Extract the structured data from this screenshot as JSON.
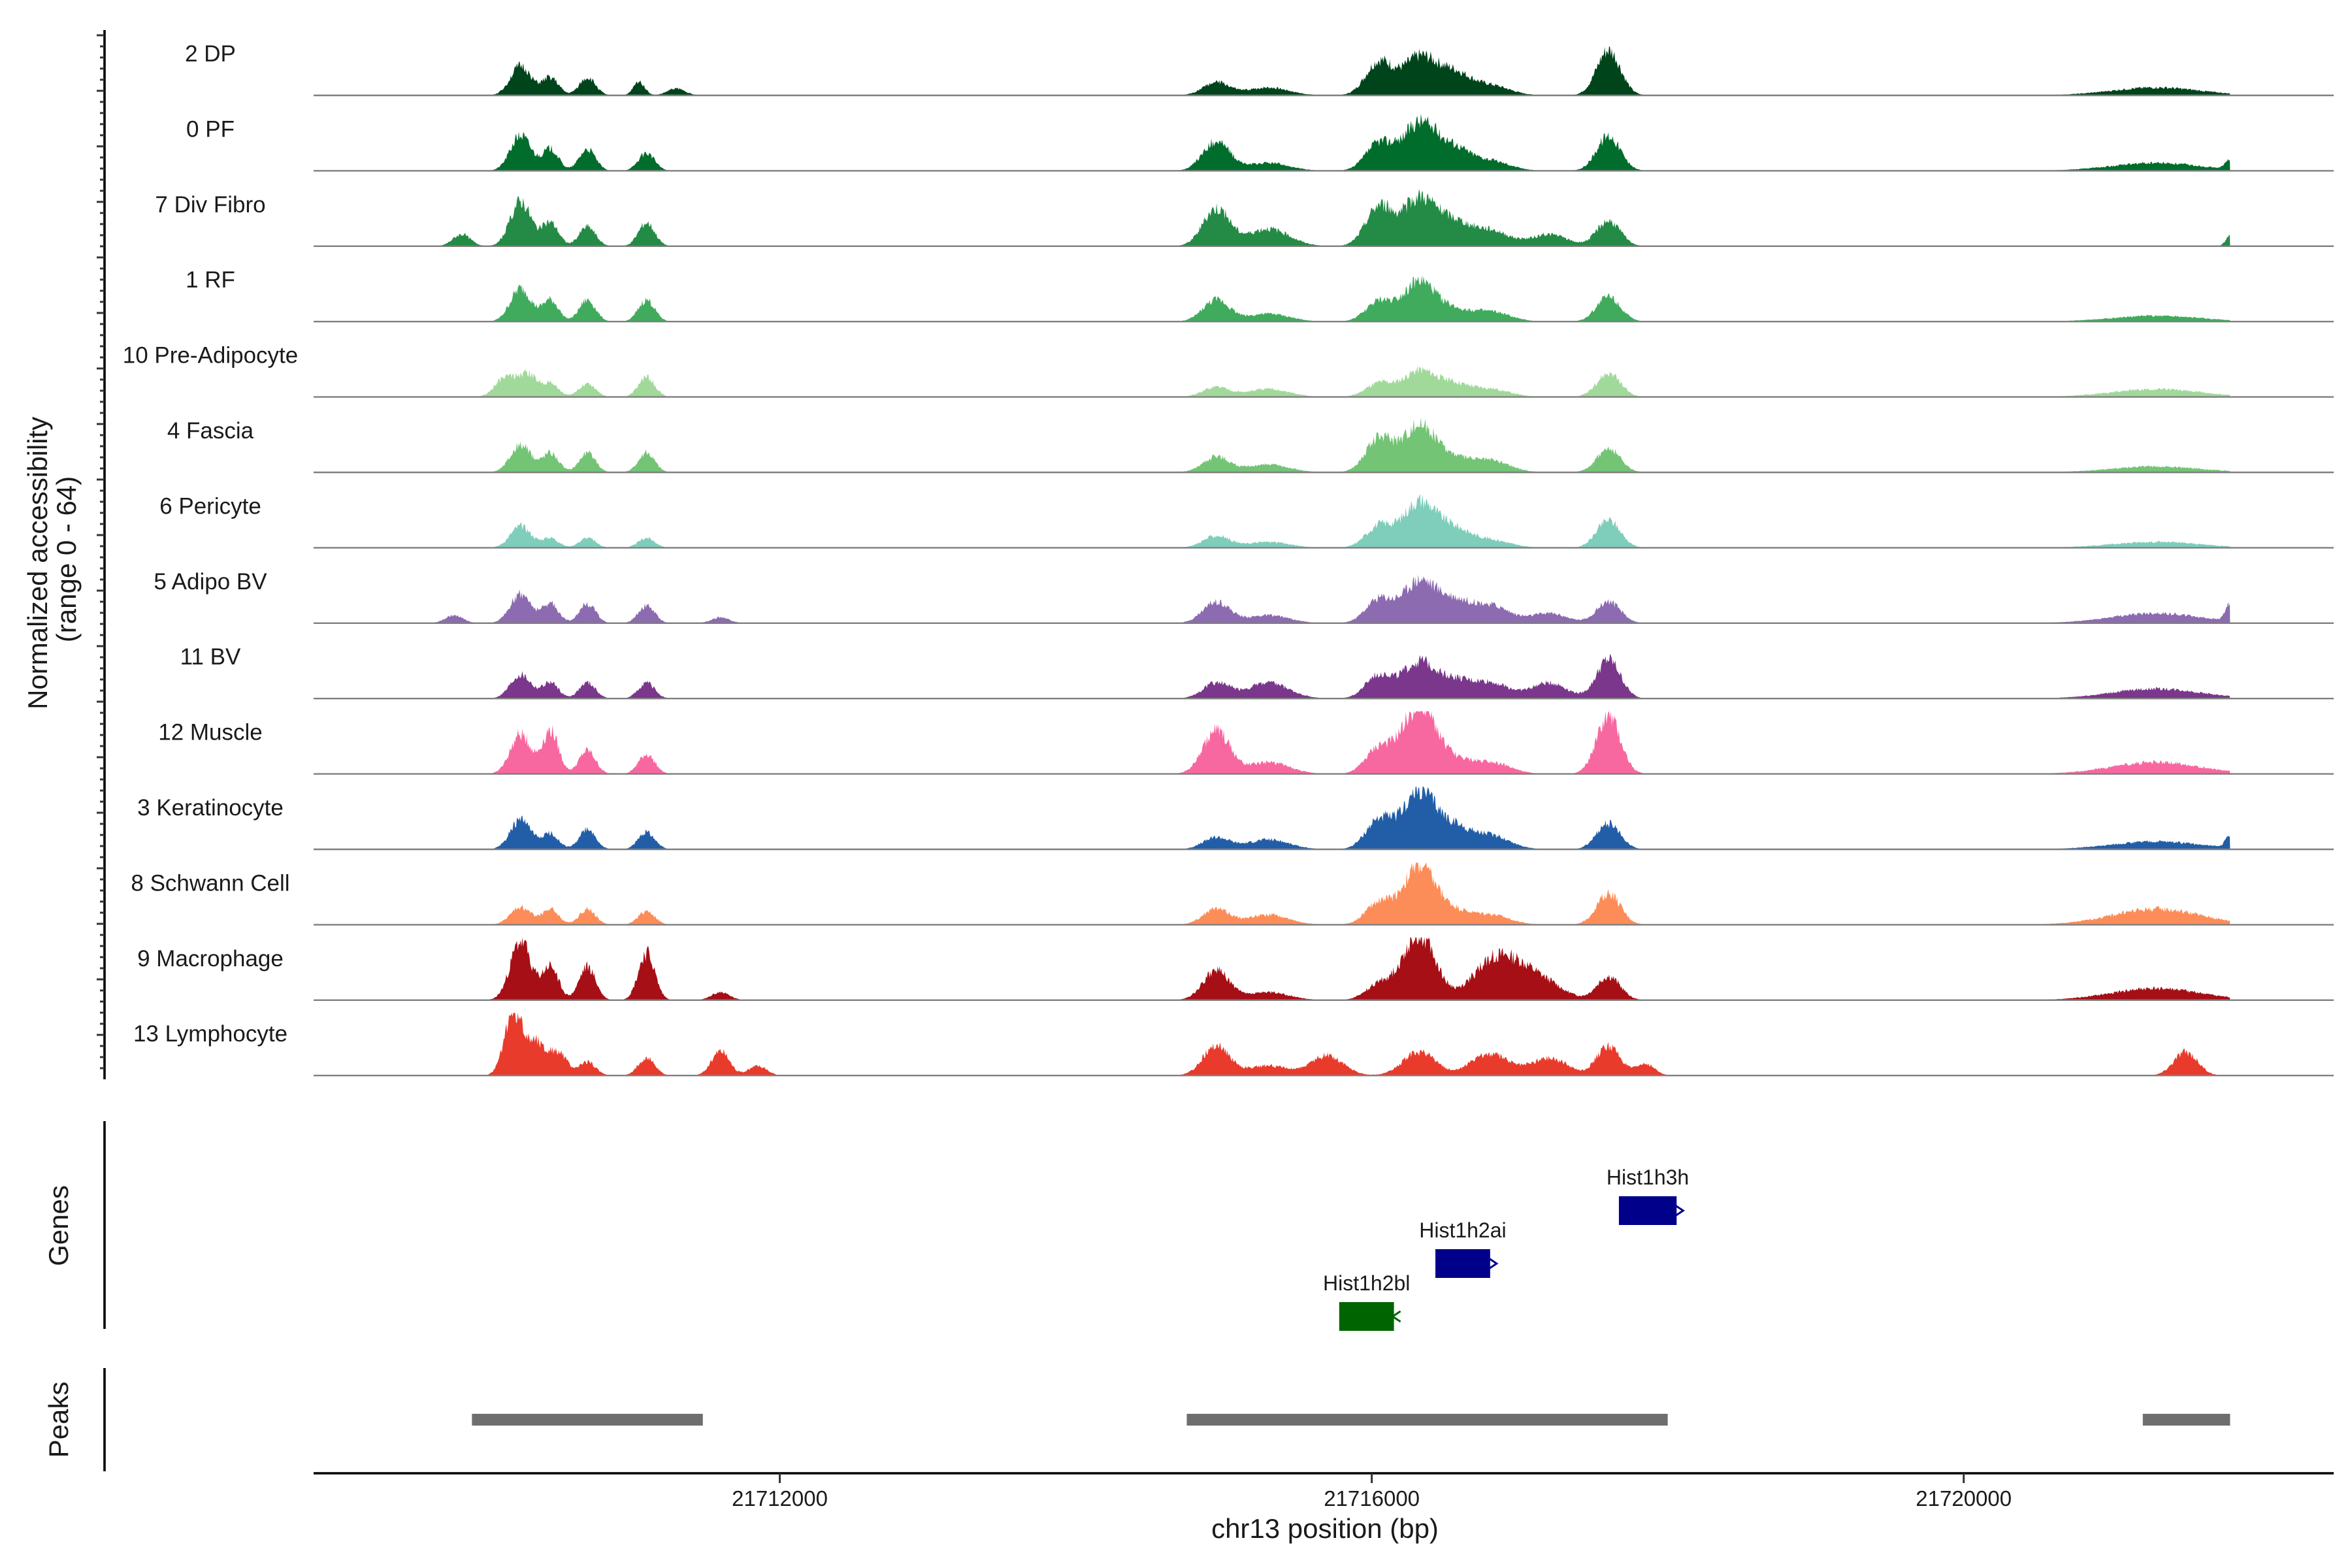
{
  "chart_data": {
    "type": "area",
    "title": "",
    "xlabel": "chr13 position (bp)",
    "ylabel": "Normalized accessibility (range 0 - 64)",
    "ylabel_lines": [
      "Normalized accessibility",
      "(range 0 - 64)"
    ],
    "ylim": [
      0,
      64
    ],
    "xlim": [
      21708850,
      21722500
    ],
    "x_ticks": [
      21712000,
      21716000,
      21720000
    ],
    "x_tick_labels": [
      "21712000",
      "21716000",
      "21720000"
    ],
    "signal_regions": [
      [
        21709000,
        21721800
      ]
    ],
    "series": [
      {
        "name": "2 DP",
        "color": "#00441b",
        "shape_scale": 1.0,
        "peaks": [
          [
            21710250,
            70,
            30
          ],
          [
            21710450,
            55,
            18
          ],
          [
            21710700,
            55,
            18
          ],
          [
            21711050,
            38,
            14
          ],
          [
            21711300,
            60,
            7
          ],
          [
            21714950,
            90,
            13
          ],
          [
            21715300,
            140,
            8
          ],
          [
            21716050,
            90,
            34
          ],
          [
            21716320,
            110,
            38
          ],
          [
            21716550,
            110,
            22
          ],
          [
            21716800,
            130,
            10
          ],
          [
            21717600,
            80,
            46
          ],
          [
            21721300,
            300,
            8
          ]
        ]
      },
      {
        "name": "0 PF",
        "color": "#006d2c",
        "shape_scale": 1.0,
        "peaks": [
          [
            21710250,
            70,
            36
          ],
          [
            21710450,
            55,
            22
          ],
          [
            21710700,
            55,
            22
          ],
          [
            21711100,
            55,
            18
          ],
          [
            21714950,
            90,
            30
          ],
          [
            21715300,
            140,
            8
          ],
          [
            21716050,
            90,
            28
          ],
          [
            21716320,
            110,
            48
          ],
          [
            21716550,
            110,
            22
          ],
          [
            21716800,
            130,
            10
          ],
          [
            21717600,
            80,
            36
          ],
          [
            21721300,
            300,
            8
          ],
          [
            21721800,
            30,
            10
          ]
        ]
      },
      {
        "name": "7 Div Fibro",
        "color": "#238b45",
        "shape_scale": 1.0,
        "peaks": [
          [
            21709850,
            60,
            12
          ],
          [
            21710250,
            70,
            46
          ],
          [
            21710450,
            55,
            24
          ],
          [
            21710700,
            55,
            20
          ],
          [
            21711100,
            55,
            24
          ],
          [
            21714950,
            90,
            38
          ],
          [
            21715300,
            140,
            18
          ],
          [
            21716050,
            90,
            40
          ],
          [
            21716320,
            110,
            48
          ],
          [
            21716550,
            110,
            22
          ],
          [
            21716800,
            130,
            16
          ],
          [
            21717200,
            120,
            12
          ],
          [
            21717600,
            80,
            26
          ],
          [
            21721800,
            30,
            10
          ]
        ]
      },
      {
        "name": "1 RF",
        "color": "#41ab5d",
        "shape_scale": 1.0,
        "peaks": [
          [
            21710250,
            70,
            34
          ],
          [
            21710450,
            55,
            22
          ],
          [
            21710700,
            55,
            22
          ],
          [
            21711100,
            55,
            22
          ],
          [
            21714950,
            90,
            22
          ],
          [
            21715300,
            140,
            8
          ],
          [
            21716050,
            90,
            20
          ],
          [
            21716320,
            110,
            40
          ],
          [
            21716550,
            110,
            10
          ],
          [
            21716800,
            130,
            10
          ],
          [
            21717600,
            80,
            26
          ],
          [
            21721300,
            300,
            6
          ]
        ]
      },
      {
        "name": "10 Pre-Adipocyte",
        "color": "#a1d99b",
        "shape_scale": 1.0,
        "peaks": [
          [
            21710150,
            70,
            20
          ],
          [
            21710300,
            60,
            22
          ],
          [
            21710450,
            55,
            14
          ],
          [
            21710700,
            55,
            14
          ],
          [
            21711100,
            55,
            20
          ],
          [
            21714950,
            90,
            10
          ],
          [
            21715300,
            140,
            8
          ],
          [
            21716050,
            90,
            14
          ],
          [
            21716320,
            110,
            26
          ],
          [
            21716550,
            110,
            12
          ],
          [
            21716800,
            130,
            8
          ],
          [
            21717600,
            80,
            24
          ],
          [
            21721300,
            300,
            8
          ]
        ]
      },
      {
        "name": "4 Fascia",
        "color": "#74c476",
        "shape_scale": 1.0,
        "peaks": [
          [
            21710250,
            70,
            28
          ],
          [
            21710450,
            55,
            20
          ],
          [
            21710700,
            55,
            20
          ],
          [
            21711100,
            55,
            20
          ],
          [
            21714950,
            90,
            16
          ],
          [
            21715300,
            140,
            8
          ],
          [
            21716050,
            90,
            34
          ],
          [
            21716320,
            110,
            48
          ],
          [
            21716550,
            110,
            12
          ],
          [
            21716800,
            130,
            12
          ],
          [
            21717600,
            80,
            24
          ],
          [
            21721300,
            300,
            6
          ]
        ]
      },
      {
        "name": "6 Pericyte",
        "color": "#7fcdbb",
        "shape_scale": 1.0,
        "peaks": [
          [
            21710250,
            70,
            22
          ],
          [
            21710450,
            55,
            10
          ],
          [
            21710700,
            55,
            10
          ],
          [
            21711100,
            55,
            10
          ],
          [
            21714950,
            90,
            12
          ],
          [
            21715300,
            140,
            6
          ],
          [
            21716050,
            90,
            22
          ],
          [
            21716320,
            110,
            46
          ],
          [
            21716550,
            110,
            18
          ],
          [
            21716800,
            130,
            8
          ],
          [
            21717600,
            80,
            28
          ],
          [
            21721300,
            300,
            6
          ]
        ]
      },
      {
        "name": "5 Adipo BV",
        "color": "#8c6bb1",
        "shape_scale": 1.0,
        "peaks": [
          [
            21709800,
            60,
            8
          ],
          [
            21710250,
            70,
            30
          ],
          [
            21710450,
            55,
            20
          ],
          [
            21710700,
            55,
            20
          ],
          [
            21711100,
            55,
            18
          ],
          [
            21711600,
            60,
            6
          ],
          [
            21714950,
            90,
            22
          ],
          [
            21715300,
            140,
            8
          ],
          [
            21716050,
            90,
            24
          ],
          [
            21716320,
            110,
            42
          ],
          [
            21716550,
            110,
            20
          ],
          [
            21716800,
            130,
            18
          ],
          [
            21717200,
            120,
            10
          ],
          [
            21717600,
            80,
            22
          ],
          [
            21721300,
            300,
            10
          ],
          [
            21721800,
            30,
            18
          ]
        ]
      },
      {
        "name": "11 BV",
        "color": "#7a378b",
        "shape_scale": 1.0,
        "peaks": [
          [
            21710250,
            70,
            24
          ],
          [
            21710450,
            55,
            16
          ],
          [
            21710700,
            55,
            16
          ],
          [
            21711100,
            55,
            16
          ],
          [
            21714950,
            90,
            16
          ],
          [
            21715300,
            140,
            16
          ],
          [
            21716050,
            90,
            24
          ],
          [
            21716320,
            110,
            36
          ],
          [
            21716550,
            110,
            16
          ],
          [
            21716800,
            130,
            16
          ],
          [
            21717200,
            120,
            16
          ],
          [
            21717600,
            80,
            40
          ],
          [
            21721300,
            300,
            10
          ]
        ]
      },
      {
        "name": "12 Muscle",
        "color": "#f768a1",
        "shape_scale": 1.0,
        "peaks": [
          [
            21710250,
            70,
            40
          ],
          [
            21710450,
            55,
            44
          ],
          [
            21710700,
            55,
            24
          ],
          [
            21711100,
            55,
            20
          ],
          [
            21714950,
            90,
            44
          ],
          [
            21715300,
            140,
            12
          ],
          [
            21716050,
            90,
            26
          ],
          [
            21716320,
            110,
            70
          ],
          [
            21716550,
            110,
            12
          ],
          [
            21716800,
            130,
            12
          ],
          [
            21717600,
            80,
            58
          ],
          [
            21721300,
            300,
            12
          ]
        ]
      },
      {
        "name": "3 Keratinocyte",
        "color": "#225ea8",
        "shape_scale": 1.0,
        "peaks": [
          [
            21710250,
            70,
            30
          ],
          [
            21710450,
            55,
            16
          ],
          [
            21710700,
            55,
            20
          ],
          [
            21711100,
            55,
            18
          ],
          [
            21714950,
            90,
            12
          ],
          [
            21715300,
            140,
            10
          ],
          [
            21716050,
            90,
            30
          ],
          [
            21716320,
            110,
            58
          ],
          [
            21716550,
            110,
            20
          ],
          [
            21716800,
            130,
            14
          ],
          [
            21717600,
            80,
            26
          ],
          [
            21721300,
            300,
            8
          ],
          [
            21721800,
            30,
            12
          ]
        ]
      },
      {
        "name": "8 Schwann Cell",
        "color": "#fc8d59",
        "shape_scale": 1.0,
        "peaks": [
          [
            21710250,
            70,
            18
          ],
          [
            21710450,
            55,
            16
          ],
          [
            21710700,
            55,
            16
          ],
          [
            21711100,
            55,
            14
          ],
          [
            21714950,
            90,
            16
          ],
          [
            21715300,
            140,
            10
          ],
          [
            21716050,
            90,
            22
          ],
          [
            21716320,
            110,
            58
          ],
          [
            21716550,
            110,
            12
          ],
          [
            21716800,
            130,
            10
          ],
          [
            21717600,
            80,
            32
          ],
          [
            21721300,
            300,
            16
          ]
        ]
      },
      {
        "name": "9 Macrophage",
        "color": "#a50f15",
        "shape_scale": 1.0,
        "peaks": [
          [
            21710250,
            70,
            60
          ],
          [
            21710450,
            55,
            34
          ],
          [
            21710700,
            55,
            34
          ],
          [
            21711100,
            55,
            48
          ],
          [
            21711600,
            60,
            8
          ],
          [
            21714950,
            90,
            30
          ],
          [
            21715300,
            140,
            8
          ],
          [
            21716050,
            90,
            16
          ],
          [
            21716320,
            110,
            68
          ],
          [
            21716800,
            130,
            36
          ],
          [
            21717000,
            120,
            26
          ],
          [
            21717200,
            120,
            14
          ],
          [
            21717600,
            80,
            24
          ],
          [
            21721300,
            300,
            12
          ]
        ]
      },
      {
        "name": "13 Lymphocyte",
        "color": "#e83b2b",
        "shape_scale": 1.0,
        "peaks": [
          [
            21710200,
            60,
            64
          ],
          [
            21710350,
            60,
            34
          ],
          [
            21710500,
            60,
            24
          ],
          [
            21710700,
            55,
            14
          ],
          [
            21711100,
            55,
            18
          ],
          [
            21711600,
            60,
            26
          ],
          [
            21711850,
            60,
            10
          ],
          [
            21714950,
            90,
            30
          ],
          [
            21715300,
            140,
            10
          ],
          [
            21715700,
            110,
            20
          ],
          [
            21716320,
            110,
            24
          ],
          [
            21716800,
            130,
            22
          ],
          [
            21717200,
            120,
            18
          ],
          [
            21717600,
            80,
            30
          ],
          [
            21717850,
            60,
            12
          ],
          [
            21721500,
            80,
            24
          ]
        ]
      }
    ],
    "genes": [
      {
        "name": "Hist1h3h",
        "start": 21717670,
        "end": 21718060,
        "strand": "+",
        "color": "#00008b",
        "row": 1
      },
      {
        "name": "Hist1h2ai",
        "start": 21716430,
        "end": 21716800,
        "strand": "+",
        "color": "#00008b",
        "row": 2
      },
      {
        "name": "Hist1h2bl",
        "start": 21715780,
        "end": 21716150,
        "strand": "-",
        "color": "#006400",
        "row": 3
      }
    ],
    "peaks_track": [
      [
        21709920,
        21711480
      ],
      [
        21714750,
        21718000
      ],
      [
        21721210,
        21721800
      ]
    ],
    "panel_labels": {
      "genes": "Genes",
      "peaks": "Peaks"
    }
  }
}
